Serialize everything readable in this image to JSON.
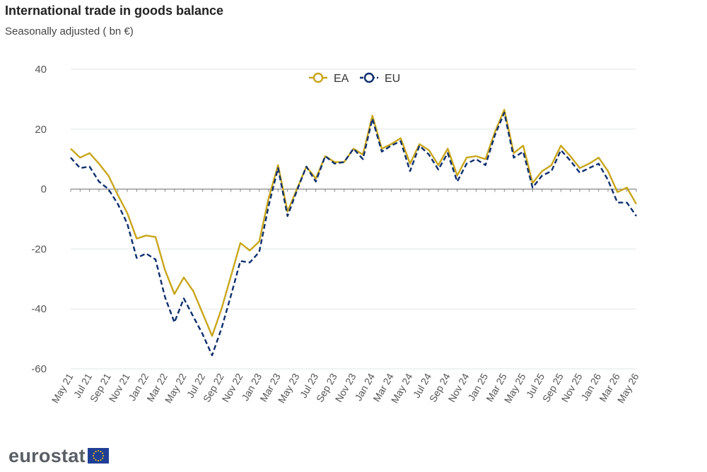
{
  "title": "International trade in goods balance",
  "subtitle": "Seasonally adjusted ( bn €)",
  "logo": {
    "text": "eurostat"
  },
  "chart_data": {
    "type": "line",
    "title": "International trade in goods balance",
    "subtitle": "Seasonally adjusted ( bn €)",
    "ylim": [
      -60,
      40
    ],
    "yticks": [
      40,
      20,
      0,
      -20,
      -40,
      -60
    ],
    "grid": true,
    "legend_position": "top-center",
    "x": [
      "May 21",
      "Jun 21",
      "Jul 21",
      "Aug 21",
      "Sep 21",
      "Oct 21",
      "Nov 21",
      "Dec 21",
      "Jan 22",
      "Feb 22",
      "Mar 22",
      "Apr 22",
      "May 22",
      "Jun 22",
      "Jul 22",
      "Aug 22",
      "Sep 22",
      "Oct 22",
      "Nov 22",
      "Dec 22",
      "Jan 23",
      "Feb 23",
      "Mar 23",
      "Apr 23",
      "May 23",
      "Jun 23",
      "Jul 23",
      "Aug 23",
      "Sep 23",
      "Oct 23",
      "Nov 23",
      "Dec 23",
      "Jan 24",
      "Feb 24",
      "Mar 24",
      "Apr 24",
      "May 24",
      "Jun 24",
      "Jul 24",
      "Aug 24",
      "Sep 24",
      "Oct 24",
      "Nov 24",
      "Dec 24",
      "Jan 25",
      "Feb 25",
      "Mar 25",
      "Apr 25",
      "May 25",
      "Jun 25",
      "Jul 25",
      "Aug 25",
      "Sep 25",
      "Oct 25",
      "Nov 25",
      "Dec 25",
      "Jan 26",
      "Feb 26",
      "Mar 26",
      "Apr 26",
      "May 26"
    ],
    "xtick_labels": [
      "May 21",
      "Jul 21",
      "Sep 21",
      "Nov 21",
      "Jan 22",
      "Mar 22",
      "May 22",
      "Jul 22",
      "Sep 22",
      "Nov 22",
      "Jan 23",
      "Mar 23",
      "May 23",
      "Jul 23",
      "Sep 23",
      "Nov 23",
      "Jan 24",
      "Mar 24",
      "May 24",
      "Jul 24",
      "Sep 24",
      "Nov 24",
      "Jan 25",
      "Mar 25",
      "May 25",
      "Jul 25",
      "Sep 25",
      "Nov 25",
      "Jan 26",
      "Mar 26",
      "May 26"
    ],
    "series": [
      {
        "name": "EA",
        "color": "#c8a61a",
        "style": "solid",
        "values": [
          13.5,
          10.5,
          12.0,
          8.5,
          4.5,
          -2.0,
          -8.0,
          -16.5,
          -15.5,
          -16.0,
          -27.0,
          -35.0,
          -29.5,
          -34.0,
          -41.5,
          -49.0,
          -40.0,
          -29.0,
          -18.0,
          -20.5,
          -17.5,
          -3.0,
          8.0,
          -7.5,
          0.0,
          7.5,
          3.5,
          11.0,
          9.0,
          9.0,
          13.5,
          11.5,
          24.5,
          13.5,
          15.0,
          17.0,
          8.5,
          15.0,
          13.0,
          8.0,
          13.5,
          4.5,
          10.5,
          11.0,
          10.0,
          19.0,
          26.5,
          12.0,
          14.5,
          2.0,
          6.0,
          8.0,
          14.5,
          11.0,
          7.0,
          8.5,
          10.5,
          6.0,
          -1.0,
          0.5,
          -5.0
        ]
      },
      {
        "name": "EU",
        "color": "#0e2f6e",
        "style": "dashed",
        "values": [
          10.5,
          7.0,
          7.5,
          2.5,
          0.0,
          -5.0,
          -11.5,
          -23.0,
          -21.5,
          -23.5,
          -36.0,
          -44.5,
          -36.5,
          -42.5,
          -48.5,
          -55.5,
          -46.5,
          -35.5,
          -24.0,
          -24.5,
          -21.0,
          -5.5,
          7.0,
          -9.0,
          -0.5,
          7.5,
          2.5,
          11.0,
          8.5,
          9.0,
          13.5,
          10.0,
          23.5,
          12.5,
          14.5,
          16.0,
          6.0,
          14.5,
          11.5,
          6.5,
          12.0,
          2.5,
          8.5,
          10.0,
          8.0,
          18.0,
          25.5,
          10.5,
          12.5,
          0.5,
          4.5,
          6.0,
          13.0,
          9.5,
          5.5,
          7.0,
          8.5,
          3.0,
          -4.5,
          -4.5,
          -9.0
        ]
      }
    ]
  }
}
